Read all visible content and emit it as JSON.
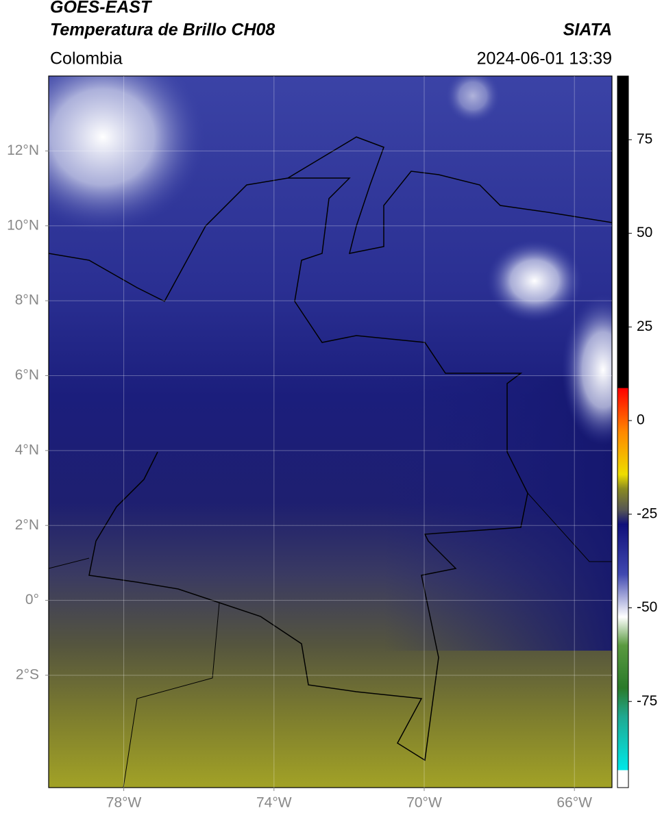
{
  "header": {
    "title_lines": [
      "GOES-EAST",
      "Temperatura de Brillo CH08"
    ],
    "region": "Colombia",
    "source": "SIATA",
    "timestamp": "2024-06-01 13:39"
  },
  "map": {
    "xlim": [
      -80,
      -65
    ],
    "ylim": [
      -5,
      14
    ],
    "xticks": [
      {
        "value": -78,
        "label": "78°W"
      },
      {
        "value": -74,
        "label": "74°W"
      },
      {
        "value": -70,
        "label": "70°W"
      },
      {
        "value": -66,
        "label": "66°W"
      }
    ],
    "yticks": [
      {
        "value": 12,
        "label": "12°N"
      },
      {
        "value": 10,
        "label": "10°N"
      },
      {
        "value": 8,
        "label": "8°N"
      },
      {
        "value": 6,
        "label": "6°N"
      },
      {
        "value": 4,
        "label": "4°N"
      },
      {
        "value": 2,
        "label": "2°N"
      },
      {
        "value": 0,
        "label": "0°"
      },
      {
        "value": -2,
        "label": "2°S"
      }
    ],
    "grid": true
  },
  "colorbar": {
    "lim": [
      -98,
      92
    ],
    "ticks": [
      75,
      50,
      25,
      0,
      -25,
      -50,
      -75
    ]
  }
}
